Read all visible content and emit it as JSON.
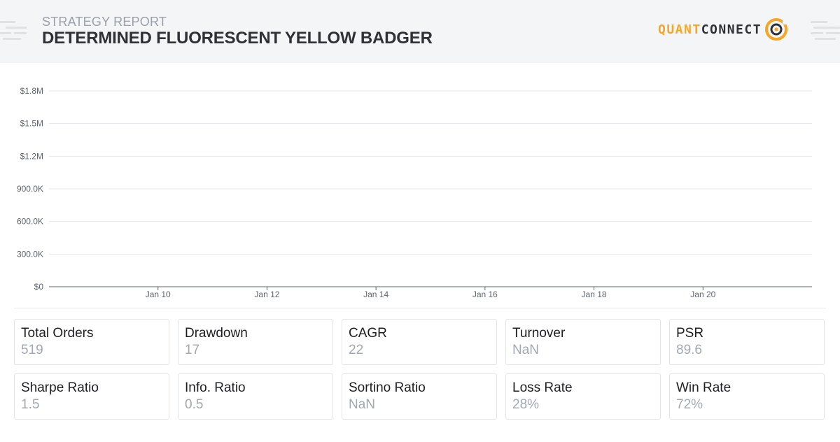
{
  "header": {
    "subtitle": "STRATEGY REPORT",
    "title": "DETERMINED FLUORESCENT YELLOW BADGER",
    "logo": {
      "part1": "QUANT",
      "part2": "CONNECT",
      "icon": "quantconnect-logo-icon"
    }
  },
  "colors": {
    "accent": "#f5a623",
    "header_bg": "#f4f5f7",
    "title": "#2f3136",
    "value_text": "#a3a8b0"
  },
  "chart_data": {
    "type": "line",
    "title": "",
    "xlabel": "",
    "ylabel": "",
    "y_ticks": [
      "$0",
      "300.0K",
      "600.0K",
      "900.0K",
      "$1.2M",
      "$1.5M",
      "$1.8M"
    ],
    "y_tick_values": [
      0,
      300000,
      600000,
      900000,
      1200000,
      1500000,
      1800000
    ],
    "x_ticks": [
      "Jan 10",
      "Jan 12",
      "Jan 14",
      "Jan 16",
      "Jan 18",
      "Jan 20"
    ],
    "ylim": [
      0,
      1800000
    ],
    "xlim": [
      "Jan 8",
      "Jan 22"
    ],
    "grid": true,
    "series": []
  },
  "stats": [
    {
      "label": "Total Orders",
      "value": "519"
    },
    {
      "label": "Drawdown",
      "value": "17"
    },
    {
      "label": "CAGR",
      "value": "22"
    },
    {
      "label": "Turnover",
      "value": "NaN"
    },
    {
      "label": "PSR",
      "value": "89.6"
    },
    {
      "label": "Sharpe Ratio",
      "value": "1.5"
    },
    {
      "label": "Info. Ratio",
      "value": "0.5"
    },
    {
      "label": "Sortino Ratio",
      "value": "NaN"
    },
    {
      "label": "Loss Rate",
      "value": "28%"
    },
    {
      "label": "Win Rate",
      "value": "72%"
    }
  ]
}
